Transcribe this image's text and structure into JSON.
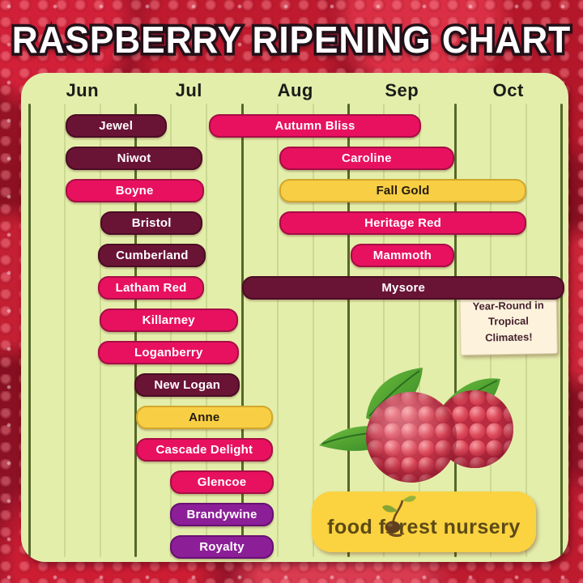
{
  "title": "RASPBERRY RIPENING CHART",
  "brand": {
    "logo_text": "food forest nursery"
  },
  "note": {
    "text": "Year-Round in Tropical Climates!"
  },
  "chart_data": {
    "type": "bar",
    "variant": "gantt-ripening-timeline",
    "title": "Raspberry Ripening Chart",
    "x_axis": {
      "tick_labels": [
        "Jun",
        "Jul",
        "Aug",
        "Sep",
        "Oct"
      ],
      "unit": "month (0 = start of June, 5 = end of October)",
      "range": [
        0,
        5
      ],
      "minor_divisions_per_month": 3,
      "grid": "on"
    },
    "bars": [
      {
        "label": "Jewel",
        "row": 0,
        "start": 0.34,
        "end": 1.29,
        "color": "maroon"
      },
      {
        "label": "Autumn Bliss",
        "row": 0,
        "start": 1.69,
        "end": 3.68,
        "color": "pink"
      },
      {
        "label": "Niwot",
        "row": 1,
        "start": 0.34,
        "end": 1.63,
        "color": "maroon"
      },
      {
        "label": "Caroline",
        "row": 1,
        "start": 2.35,
        "end": 3.99,
        "color": "pink"
      },
      {
        "label": "Boyne",
        "row": 2,
        "start": 0.34,
        "end": 1.64,
        "color": "pink"
      },
      {
        "label": "Fall Gold",
        "row": 2,
        "start": 2.35,
        "end": 4.67,
        "color": "gold"
      },
      {
        "label": "Bristol",
        "row": 3,
        "start": 0.67,
        "end": 1.63,
        "color": "maroon"
      },
      {
        "label": "Heritage Red",
        "row": 3,
        "start": 2.35,
        "end": 4.67,
        "color": "pink"
      },
      {
        "label": "Cumberland",
        "row": 4,
        "start": 0.65,
        "end": 1.66,
        "color": "maroon"
      },
      {
        "label": "Mammoth",
        "row": 4,
        "start": 3.02,
        "end": 3.99,
        "color": "pink"
      },
      {
        "label": "Latham Red",
        "row": 5,
        "start": 0.65,
        "end": 1.64,
        "color": "pink"
      },
      {
        "label": "Mysore",
        "row": 5,
        "start": 2.0,
        "end": 5.03,
        "color": "maroon"
      },
      {
        "label": "Killarney",
        "row": 6,
        "start": 0.66,
        "end": 1.96,
        "color": "pink"
      },
      {
        "label": "Loganberry",
        "row": 7,
        "start": 0.65,
        "end": 1.97,
        "color": "pink"
      },
      {
        "label": "New Logan",
        "row": 8,
        "start": 0.99,
        "end": 1.98,
        "color": "maroon"
      },
      {
        "label": "Anne",
        "row": 9,
        "start": 1.0,
        "end": 2.29,
        "color": "gold"
      },
      {
        "label": "Cascade Delight",
        "row": 10,
        "start": 1.0,
        "end": 2.29,
        "color": "pink"
      },
      {
        "label": "Glencoe",
        "row": 11,
        "start": 1.32,
        "end": 2.3,
        "color": "pink"
      },
      {
        "label": "Brandywine",
        "row": 12,
        "start": 1.32,
        "end": 2.3,
        "color": "purple"
      },
      {
        "label": "Royalty",
        "row": 13,
        "start": 1.32,
        "end": 2.3,
        "color": "purple"
      }
    ],
    "annotation": {
      "target": "Mysore",
      "text": "Year-Round in Tropical Climates!"
    },
    "legend": "none"
  },
  "colors": {
    "maroon": "#6a1435",
    "pink": "#e8115f",
    "gold": "#f8cf44",
    "purple": "#8c1f98",
    "panel": "#e4eeab",
    "grid_major": "#55682b",
    "grid_minor": "#cbd992",
    "title_fill": "#ffffff",
    "title_outline": "#231019",
    "note_bg": "#fdf3dc",
    "note_text": "#45222e",
    "logo_bg": "#fbd23f",
    "logo_text_color": "#5c4a16"
  }
}
